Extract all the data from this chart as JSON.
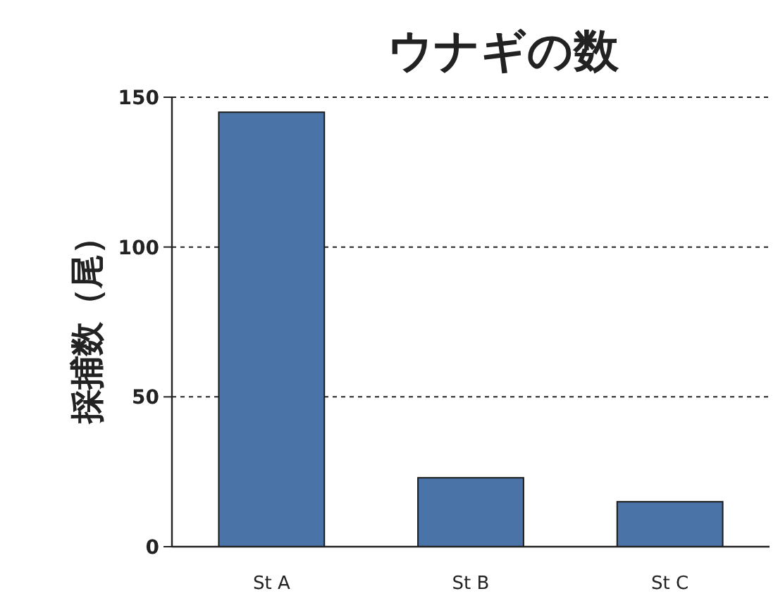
{
  "chart_data": {
    "type": "bar",
    "title": "ウナギの数",
    "ylabel": "採捕数（尾）",
    "categories": [
      "St A",
      "St B",
      "St C"
    ],
    "values": [
      145,
      23,
      15
    ],
    "color": "#4a74a8",
    "ylim": [
      0,
      150
    ],
    "yticks": [
      0,
      50,
      100,
      150
    ],
    "grid": "y"
  }
}
